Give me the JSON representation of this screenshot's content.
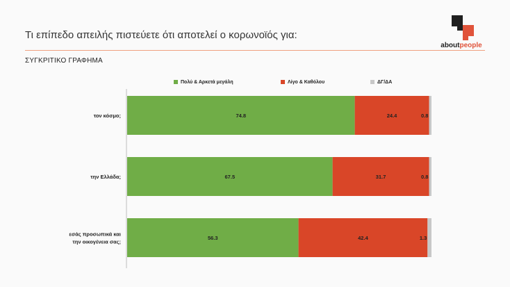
{
  "page": {
    "title": "Τι επίπεδο απειλής πιστεύετε ότι αποτελεί ο κορωνοϊός για:",
    "subtitle": "ΣΥΓΚΡΙΤΙΚΟ ΓΡΑΦΗΜΑ",
    "logo": {
      "brand_prefix": "about",
      "brand_suffix": "people"
    }
  },
  "colors": {
    "green": "#70ad47",
    "red": "#d94628",
    "gray": "#c8c8c8",
    "accent": "#e0533a"
  },
  "chart_data": {
    "type": "bar",
    "orientation": "horizontal",
    "stacked": true,
    "categories": [
      "τον κόσμο;",
      "την Ελλάδα;",
      "εσάς προσωπικά και την οικογένεια σας;"
    ],
    "series": [
      {
        "name": "Πολύ & Αρκετά μεγάλη",
        "color": "#70ad47",
        "values": [
          74.8,
          67.5,
          56.3
        ]
      },
      {
        "name": "Λίγο & Καθόλου",
        "color": "#d94628",
        "values": [
          24.4,
          31.7,
          42.4
        ]
      },
      {
        "name": "ΔΓ/ΔΑ",
        "color": "#c8c8c8",
        "values": [
          0.8,
          0.8,
          1.3
        ]
      }
    ],
    "xlim": [
      0,
      100
    ],
    "legend_position": "top",
    "grid": false
  }
}
